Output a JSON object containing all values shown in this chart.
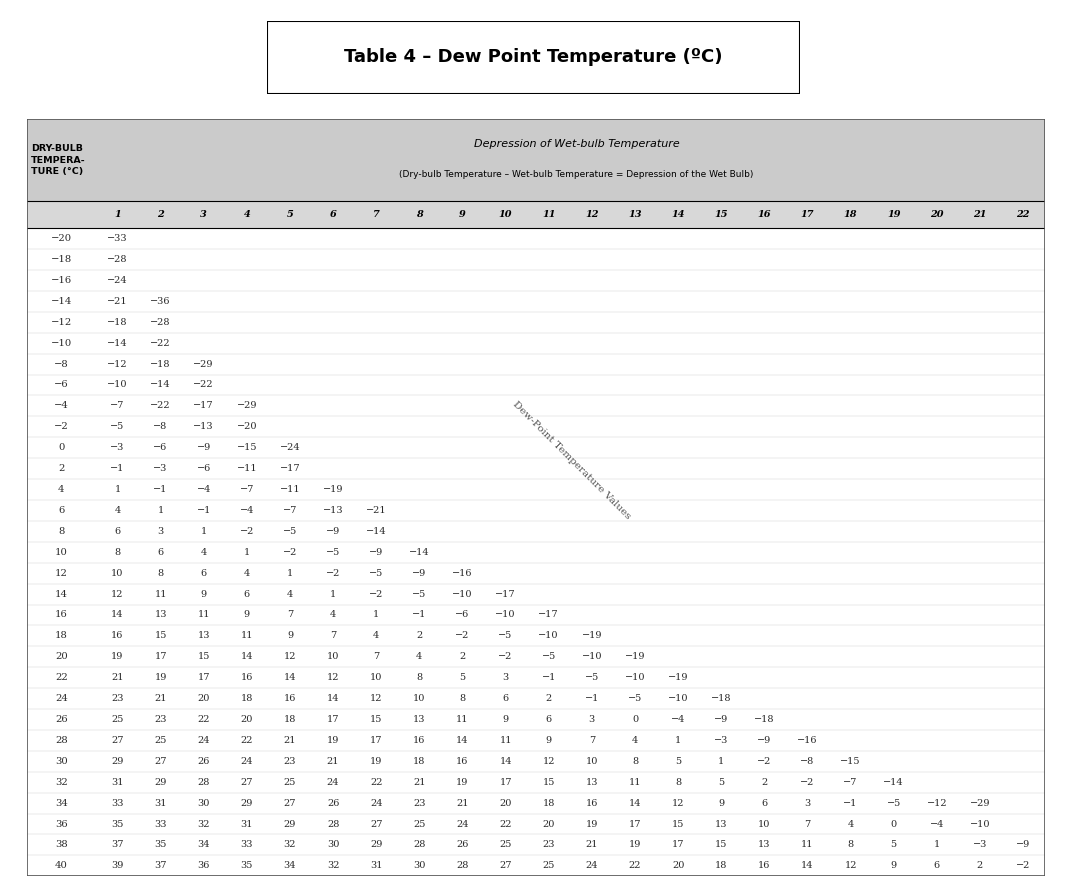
{
  "title": "Table 4 – Dew Point Temperature (ºC)",
  "header_col1": "DRY-BULB\nTEMPERA-\nTURE (°C)",
  "header_depression_line1": "Depression of Wet-bulb Temperature",
  "header_depression_line2": "(Dry-bulb Temperature – Wet-bulb Temperature = Depression of the Wet Bulb)",
  "col_headers": [
    1,
    2,
    3,
    4,
    5,
    6,
    7,
    8,
    9,
    10,
    11,
    12,
    13,
    14,
    15,
    16,
    17,
    18,
    19,
    20,
    21,
    22
  ],
  "dry_bulb_temps": [
    -20,
    -18,
    -16,
    -14,
    -12,
    -10,
    -8,
    -6,
    -4,
    -2,
    0,
    2,
    4,
    6,
    8,
    10,
    12,
    14,
    16,
    18,
    20,
    22,
    24,
    26,
    28,
    30,
    32,
    34,
    36,
    38,
    40
  ],
  "table_data": {
    "-20": [
      -33,
      null,
      null,
      null,
      null,
      null,
      null,
      null,
      null,
      null,
      null,
      null,
      null,
      null,
      null,
      null,
      null,
      null,
      null,
      null,
      null,
      null
    ],
    "-18": [
      -28,
      null,
      null,
      null,
      null,
      null,
      null,
      null,
      null,
      null,
      null,
      null,
      null,
      null,
      null,
      null,
      null,
      null,
      null,
      null,
      null,
      null
    ],
    "-16": [
      -24,
      null,
      null,
      null,
      null,
      null,
      null,
      null,
      null,
      null,
      null,
      null,
      null,
      null,
      null,
      null,
      null,
      null,
      null,
      null,
      null,
      null
    ],
    "-14": [
      -21,
      -36,
      null,
      null,
      null,
      null,
      null,
      null,
      null,
      null,
      null,
      null,
      null,
      null,
      null,
      null,
      null,
      null,
      null,
      null,
      null,
      null
    ],
    "-12": [
      -18,
      -28,
      null,
      null,
      null,
      null,
      null,
      null,
      null,
      null,
      null,
      null,
      null,
      null,
      null,
      null,
      null,
      null,
      null,
      null,
      null,
      null
    ],
    "-10": [
      -14,
      -22,
      null,
      null,
      null,
      null,
      null,
      null,
      null,
      null,
      null,
      null,
      null,
      null,
      null,
      null,
      null,
      null,
      null,
      null,
      null,
      null
    ],
    "-8": [
      -12,
      -18,
      -29,
      null,
      null,
      null,
      null,
      null,
      null,
      null,
      null,
      null,
      null,
      null,
      null,
      null,
      null,
      null,
      null,
      null,
      null,
      null
    ],
    "-6": [
      -10,
      -14,
      -22,
      null,
      null,
      null,
      null,
      null,
      null,
      null,
      null,
      null,
      null,
      null,
      null,
      null,
      null,
      null,
      null,
      null,
      null,
      null
    ],
    "-4": [
      -7,
      -22,
      -17,
      -29,
      null,
      null,
      null,
      null,
      null,
      null,
      null,
      null,
      null,
      null,
      null,
      null,
      null,
      null,
      null,
      null,
      null,
      null
    ],
    "-2": [
      -5,
      -8,
      -13,
      -20,
      null,
      null,
      null,
      null,
      null,
      null,
      null,
      null,
      null,
      null,
      null,
      null,
      null,
      null,
      null,
      null,
      null,
      null
    ],
    "0": [
      -3,
      -6,
      -9,
      -15,
      -24,
      null,
      null,
      null,
      null,
      null,
      null,
      null,
      null,
      null,
      null,
      null,
      null,
      null,
      null,
      null,
      null,
      null
    ],
    "2": [
      -1,
      -3,
      -6,
      -11,
      -17,
      null,
      null,
      null,
      null,
      null,
      null,
      null,
      null,
      null,
      null,
      null,
      null,
      null,
      null,
      null,
      null,
      null
    ],
    "4": [
      1,
      -1,
      -4,
      -7,
      -11,
      -19,
      null,
      null,
      null,
      null,
      null,
      null,
      null,
      null,
      null,
      null,
      null,
      null,
      null,
      null,
      null,
      null
    ],
    "6": [
      4,
      1,
      -1,
      -4,
      -7,
      -13,
      -21,
      null,
      null,
      null,
      null,
      null,
      null,
      null,
      null,
      null,
      null,
      null,
      null,
      null,
      null,
      null
    ],
    "8": [
      6,
      3,
      1,
      -2,
      -5,
      -9,
      -14,
      null,
      null,
      null,
      null,
      null,
      null,
      null,
      null,
      null,
      null,
      null,
      null,
      null,
      null,
      null
    ],
    "10": [
      8,
      6,
      4,
      1,
      -2,
      -5,
      -9,
      -14,
      null,
      null,
      null,
      null,
      null,
      null,
      null,
      null,
      null,
      null,
      null,
      null,
      null,
      null
    ],
    "12": [
      10,
      8,
      6,
      4,
      1,
      -2,
      -5,
      -9,
      -16,
      null,
      null,
      null,
      null,
      null,
      null,
      null,
      null,
      null,
      null,
      null,
      null,
      null
    ],
    "14": [
      12,
      11,
      9,
      6,
      4,
      1,
      -2,
      -5,
      -10,
      -17,
      null,
      null,
      null,
      null,
      null,
      null,
      null,
      null,
      null,
      null,
      null,
      null
    ],
    "16": [
      14,
      13,
      11,
      9,
      7,
      4,
      1,
      -1,
      -6,
      -10,
      -17,
      null,
      null,
      null,
      null,
      null,
      null,
      null,
      null,
      null,
      null,
      null
    ],
    "18": [
      16,
      15,
      13,
      11,
      9,
      7,
      4,
      2,
      -2,
      -5,
      -10,
      -19,
      null,
      null,
      null,
      null,
      null,
      null,
      null,
      null,
      null,
      null
    ],
    "20": [
      19,
      17,
      15,
      14,
      12,
      10,
      7,
      4,
      2,
      -2,
      -5,
      -10,
      -19,
      null,
      null,
      null,
      null,
      null,
      null,
      null,
      null,
      null
    ],
    "22": [
      21,
      19,
      17,
      16,
      14,
      12,
      10,
      8,
      5,
      3,
      -1,
      -5,
      -10,
      -19,
      null,
      null,
      null,
      null,
      null,
      null,
      null,
      null
    ],
    "24": [
      23,
      21,
      20,
      18,
      16,
      14,
      12,
      10,
      8,
      6,
      2,
      -1,
      -5,
      -10,
      -18,
      null,
      null,
      null,
      null,
      null,
      null,
      null
    ],
    "26": [
      25,
      23,
      22,
      20,
      18,
      17,
      15,
      13,
      11,
      9,
      6,
      3,
      0,
      -4,
      -9,
      -18,
      null,
      null,
      null,
      null,
      null,
      null
    ],
    "28": [
      27,
      25,
      24,
      22,
      21,
      19,
      17,
      16,
      14,
      11,
      9,
      7,
      4,
      1,
      -3,
      -9,
      -16,
      null,
      null,
      null,
      null,
      null
    ],
    "30": [
      29,
      27,
      26,
      24,
      23,
      21,
      19,
      18,
      16,
      14,
      12,
      10,
      8,
      5,
      1,
      -2,
      -8,
      -15,
      null,
      null,
      null,
      null
    ],
    "32": [
      31,
      29,
      28,
      27,
      25,
      24,
      22,
      21,
      19,
      17,
      15,
      13,
      11,
      8,
      5,
      2,
      -2,
      -7,
      -14,
      null,
      null,
      null
    ],
    "34": [
      33,
      31,
      30,
      29,
      27,
      26,
      24,
      23,
      21,
      20,
      18,
      16,
      14,
      12,
      9,
      6,
      3,
      -1,
      -5,
      -12,
      -29,
      null
    ],
    "36": [
      35,
      33,
      32,
      31,
      29,
      28,
      27,
      25,
      24,
      22,
      20,
      19,
      17,
      15,
      13,
      10,
      7,
      4,
      0,
      -4,
      -10,
      null
    ],
    "38": [
      37,
      35,
      34,
      33,
      32,
      30,
      29,
      28,
      26,
      25,
      23,
      21,
      19,
      17,
      15,
      13,
      11,
      8,
      5,
      1,
      -3,
      -9
    ],
    "40": [
      39,
      37,
      36,
      35,
      34,
      32,
      31,
      30,
      28,
      27,
      25,
      24,
      22,
      20,
      18,
      16,
      14,
      12,
      9,
      6,
      2,
      -2
    ]
  },
  "diagonal_label": "Dew-Point Temperature Values",
  "bg_color": "#ffffff",
  "header_bg": "#c8c8c8",
  "col_header_bg": "#d8d8d8",
  "minus_sign": "−"
}
